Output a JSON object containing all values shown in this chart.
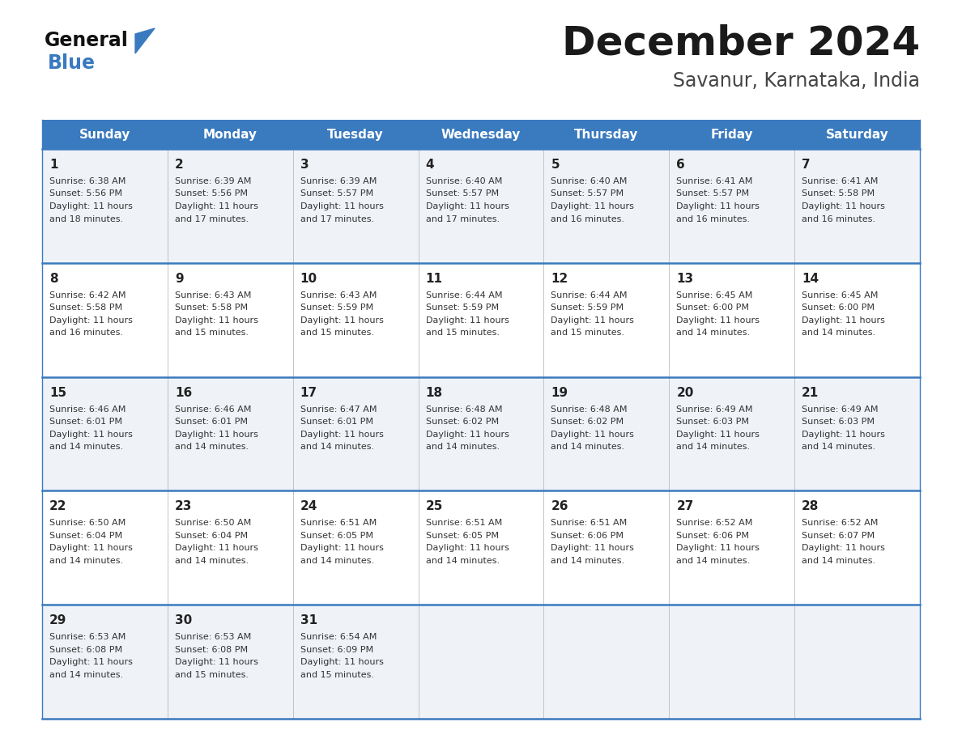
{
  "title": "December 2024",
  "subtitle": "Savanur, Karnataka, India",
  "header_color": "#3a7abf",
  "header_text_color": "#ffffff",
  "bg_color": "#ffffff",
  "cell_bg_even": "#eff3f8",
  "cell_bg_odd": "#ffffff",
  "row_line_color": "#3a7abf",
  "text_color": "#333333",
  "days_of_week": [
    "Sunday",
    "Monday",
    "Tuesday",
    "Wednesday",
    "Thursday",
    "Friday",
    "Saturday"
  ],
  "calendar": [
    [
      {
        "day": 1,
        "sunrise": "6:38 AM",
        "sunset": "5:56 PM",
        "daylight": "11 hours and 18 minutes."
      },
      {
        "day": 2,
        "sunrise": "6:39 AM",
        "sunset": "5:56 PM",
        "daylight": "11 hours and 17 minutes."
      },
      {
        "day": 3,
        "sunrise": "6:39 AM",
        "sunset": "5:57 PM",
        "daylight": "11 hours and 17 minutes."
      },
      {
        "day": 4,
        "sunrise": "6:40 AM",
        "sunset": "5:57 PM",
        "daylight": "11 hours and 17 minutes."
      },
      {
        "day": 5,
        "sunrise": "6:40 AM",
        "sunset": "5:57 PM",
        "daylight": "11 hours and 16 minutes."
      },
      {
        "day": 6,
        "sunrise": "6:41 AM",
        "sunset": "5:57 PM",
        "daylight": "11 hours and 16 minutes."
      },
      {
        "day": 7,
        "sunrise": "6:41 AM",
        "sunset": "5:58 PM",
        "daylight": "11 hours and 16 minutes."
      }
    ],
    [
      {
        "day": 8,
        "sunrise": "6:42 AM",
        "sunset": "5:58 PM",
        "daylight": "11 hours and 16 minutes."
      },
      {
        "day": 9,
        "sunrise": "6:43 AM",
        "sunset": "5:58 PM",
        "daylight": "11 hours and 15 minutes."
      },
      {
        "day": 10,
        "sunrise": "6:43 AM",
        "sunset": "5:59 PM",
        "daylight": "11 hours and 15 minutes."
      },
      {
        "day": 11,
        "sunrise": "6:44 AM",
        "sunset": "5:59 PM",
        "daylight": "11 hours and 15 minutes."
      },
      {
        "day": 12,
        "sunrise": "6:44 AM",
        "sunset": "5:59 PM",
        "daylight": "11 hours and 15 minutes."
      },
      {
        "day": 13,
        "sunrise": "6:45 AM",
        "sunset": "6:00 PM",
        "daylight": "11 hours and 14 minutes."
      },
      {
        "day": 14,
        "sunrise": "6:45 AM",
        "sunset": "6:00 PM",
        "daylight": "11 hours and 14 minutes."
      }
    ],
    [
      {
        "day": 15,
        "sunrise": "6:46 AM",
        "sunset": "6:01 PM",
        "daylight": "11 hours and 14 minutes."
      },
      {
        "day": 16,
        "sunrise": "6:46 AM",
        "sunset": "6:01 PM",
        "daylight": "11 hours and 14 minutes."
      },
      {
        "day": 17,
        "sunrise": "6:47 AM",
        "sunset": "6:01 PM",
        "daylight": "11 hours and 14 minutes."
      },
      {
        "day": 18,
        "sunrise": "6:48 AM",
        "sunset": "6:02 PM",
        "daylight": "11 hours and 14 minutes."
      },
      {
        "day": 19,
        "sunrise": "6:48 AM",
        "sunset": "6:02 PM",
        "daylight": "11 hours and 14 minutes."
      },
      {
        "day": 20,
        "sunrise": "6:49 AM",
        "sunset": "6:03 PM",
        "daylight": "11 hours and 14 minutes."
      },
      {
        "day": 21,
        "sunrise": "6:49 AM",
        "sunset": "6:03 PM",
        "daylight": "11 hours and 14 minutes."
      }
    ],
    [
      {
        "day": 22,
        "sunrise": "6:50 AM",
        "sunset": "6:04 PM",
        "daylight": "11 hours and 14 minutes."
      },
      {
        "day": 23,
        "sunrise": "6:50 AM",
        "sunset": "6:04 PM",
        "daylight": "11 hours and 14 minutes."
      },
      {
        "day": 24,
        "sunrise": "6:51 AM",
        "sunset": "6:05 PM",
        "daylight": "11 hours and 14 minutes."
      },
      {
        "day": 25,
        "sunrise": "6:51 AM",
        "sunset": "6:05 PM",
        "daylight": "11 hours and 14 minutes."
      },
      {
        "day": 26,
        "sunrise": "6:51 AM",
        "sunset": "6:06 PM",
        "daylight": "11 hours and 14 minutes."
      },
      {
        "day": 27,
        "sunrise": "6:52 AM",
        "sunset": "6:06 PM",
        "daylight": "11 hours and 14 minutes."
      },
      {
        "day": 28,
        "sunrise": "6:52 AM",
        "sunset": "6:07 PM",
        "daylight": "11 hours and 14 minutes."
      }
    ],
    [
      {
        "day": 29,
        "sunrise": "6:53 AM",
        "sunset": "6:08 PM",
        "daylight": "11 hours and 14 minutes."
      },
      {
        "day": 30,
        "sunrise": "6:53 AM",
        "sunset": "6:08 PM",
        "daylight": "11 hours and 15 minutes."
      },
      {
        "day": 31,
        "sunrise": "6:54 AM",
        "sunset": "6:09 PM",
        "daylight": "11 hours and 15 minutes."
      },
      null,
      null,
      null,
      null
    ]
  ]
}
